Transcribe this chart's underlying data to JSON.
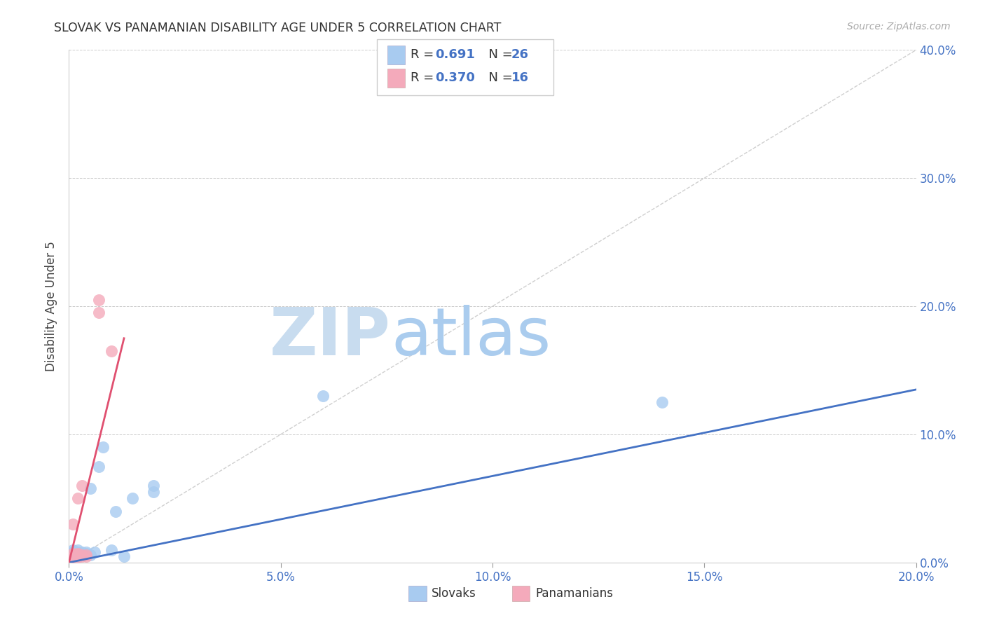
{
  "title": "SLOVAK VS PANAMANIAN DISABILITY AGE UNDER 5 CORRELATION CHART",
  "source": "Source: ZipAtlas.com",
  "ylabel": "Disability Age Under 5",
  "xlim": [
    0.0,
    0.2
  ],
  "ylim": [
    0.0,
    0.4
  ],
  "slovak_color": "#A8CBF0",
  "panamanian_color": "#F4AABB",
  "slovak_line_color": "#4472C4",
  "panamanian_line_color": "#E05070",
  "diagonal_color": "#BBBBBB",
  "zip_color": "#C8DCEF",
  "atlas_color": "#AACCEE",
  "legend_R_slovak": "0.691",
  "legend_N_slovak": "26",
  "legend_R_panamanian": "0.370",
  "legend_N_panamanian": "16",
  "x_ticks": [
    0.0,
    0.05,
    0.1,
    0.15,
    0.2
  ],
  "y_ticks": [
    0.0,
    0.1,
    0.2,
    0.3,
    0.4
  ],
  "slovak_x": [
    0.001,
    0.001,
    0.001,
    0.001,
    0.002,
    0.002,
    0.002,
    0.002,
    0.003,
    0.003,
    0.003,
    0.004,
    0.004,
    0.005,
    0.005,
    0.006,
    0.007,
    0.008,
    0.01,
    0.011,
    0.013,
    0.015,
    0.02,
    0.02,
    0.06,
    0.14
  ],
  "slovak_y": [
    0.005,
    0.007,
    0.008,
    0.01,
    0.005,
    0.007,
    0.008,
    0.01,
    0.006,
    0.007,
    0.008,
    0.007,
    0.008,
    0.006,
    0.058,
    0.008,
    0.075,
    0.09,
    0.01,
    0.04,
    0.005,
    0.05,
    0.055,
    0.06,
    0.13,
    0.125
  ],
  "pan_x": [
    0.001,
    0.001,
    0.001,
    0.001,
    0.002,
    0.002,
    0.002,
    0.002,
    0.003,
    0.003,
    0.003,
    0.004,
    0.004,
    0.007,
    0.007,
    0.01
  ],
  "pan_y": [
    0.004,
    0.006,
    0.007,
    0.03,
    0.004,
    0.006,
    0.007,
    0.05,
    0.005,
    0.006,
    0.06,
    0.005,
    0.006,
    0.195,
    0.205,
    0.165
  ],
  "sk_line_x": [
    0.0,
    0.2
  ],
  "sk_line_y": [
    0.0,
    0.135
  ],
  "pan_line_x": [
    0.0,
    0.013
  ],
  "pan_line_y": [
    0.0,
    0.175
  ]
}
